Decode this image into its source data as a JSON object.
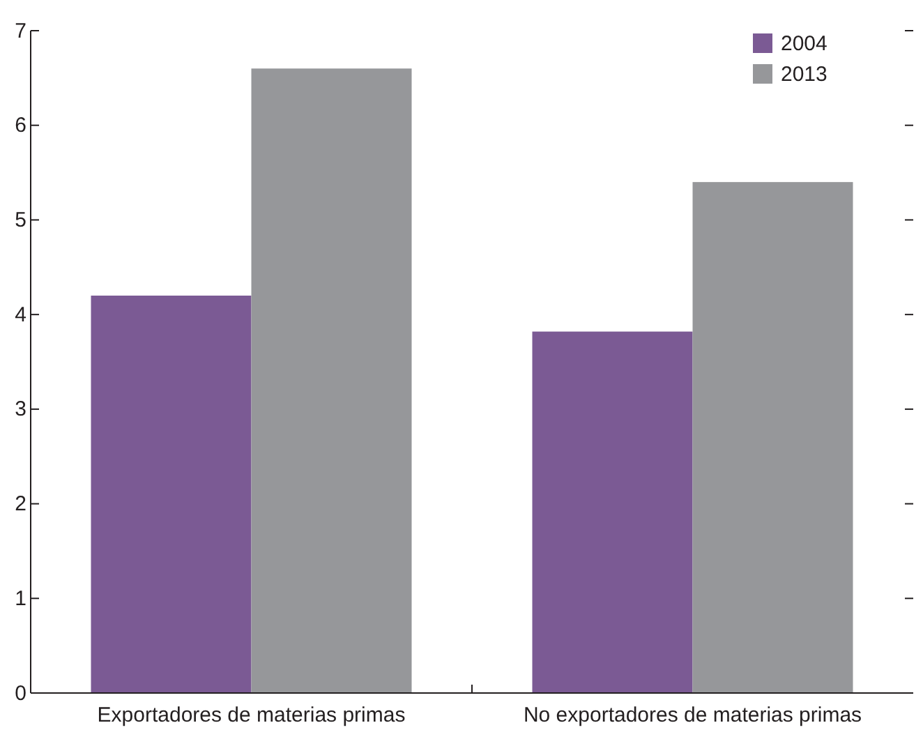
{
  "chart_data": {
    "type": "bar",
    "categories": [
      "Exportadores de materias primas",
      "No exportadores de materias primas"
    ],
    "series": [
      {
        "name": "2004",
        "color": "#7b5a94",
        "values": [
          4.2,
          3.82
        ]
      },
      {
        "name": "2013",
        "color": "#96979a",
        "values": [
          6.6,
          5.4
        ]
      }
    ],
    "ylim": [
      0,
      7
    ],
    "yticks": [
      0,
      1,
      2,
      3,
      4,
      5,
      6,
      7
    ],
    "grid": false,
    "legend": "top right"
  }
}
